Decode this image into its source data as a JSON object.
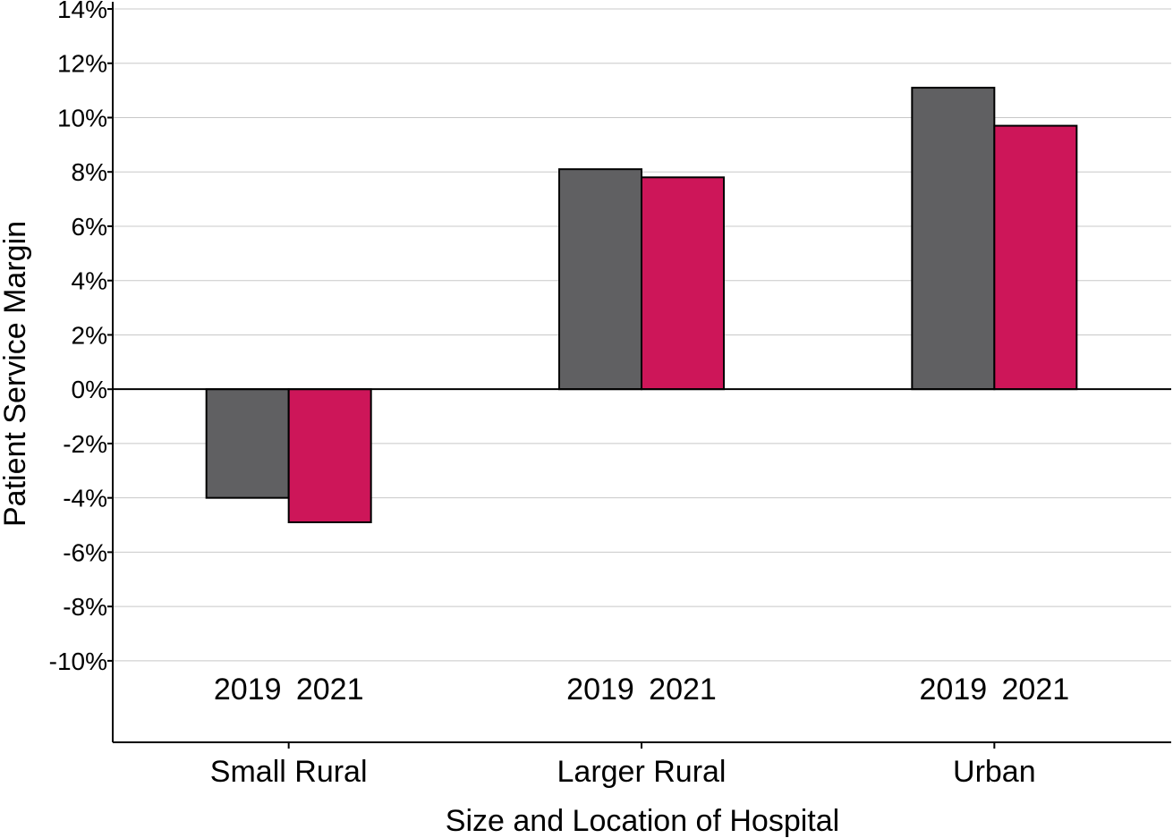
{
  "chart_data": {
    "type": "bar",
    "title": "",
    "xlabel": "Size and Location of Hospital",
    "ylabel": "Patient Service Margin",
    "categories": [
      "Small Rural",
      "Larger Rural",
      "Urban"
    ],
    "series": [
      {
        "name": "2019",
        "color": "#606062",
        "values": [
          -4.0,
          8.1,
          11.1
        ]
      },
      {
        "name": "2021",
        "color": "#cd1659",
        "values": [
          -4.9,
          7.8,
          9.7
        ]
      }
    ],
    "ylim": [
      -13,
      14
    ],
    "yticks": [
      14,
      12,
      10,
      8,
      6,
      4,
      2,
      0,
      -2,
      -4,
      -6,
      -8,
      -10
    ],
    "ytick_labels": [
      "14%",
      "12%",
      "10%",
      "8%",
      "6%",
      "4%",
      "2%",
      "0%",
      "-2%",
      "-4%",
      "-6%",
      "-8%",
      "-10%"
    ],
    "grid": "horizontal",
    "legend": "none"
  }
}
